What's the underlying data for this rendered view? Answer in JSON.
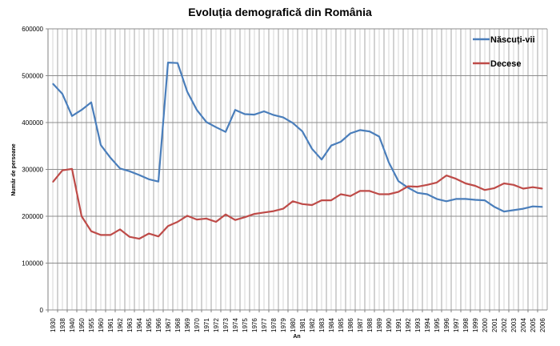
{
  "chart_data": {
    "type": "line",
    "title": "Evoluția demografică din România",
    "xlabel": "An",
    "ylabel": "Număr de persoane",
    "ylim": [
      0,
      600000
    ],
    "yticks": [
      "0",
      "100000",
      "200000",
      "300000",
      "400000",
      "500000",
      "600000"
    ],
    "grid": true,
    "legend_position": "top-right",
    "categories": [
      "1930",
      "1938",
      "1940",
      "1950",
      "1955",
      "1960",
      "1961",
      "1962",
      "1963",
      "1964",
      "1965",
      "1966",
      "1967",
      "1968",
      "1969",
      "1970",
      "1971",
      "1972",
      "1973",
      "1974",
      "1975",
      "1976",
      "1977",
      "1978",
      "1979",
      "1980",
      "1981",
      "1982",
      "1983",
      "1984",
      "1985",
      "1986",
      "1987",
      "1988",
      "1989",
      "1990",
      "1991",
      "1992",
      "1993",
      "1994",
      "1995",
      "1996",
      "1997",
      "1998",
      "1999",
      "2000",
      "2001",
      "2002",
      "2003",
      "2004",
      "2005",
      "2006"
    ],
    "series": [
      {
        "name": "Născuți-vii",
        "color": "#4a7ebb",
        "values": [
          483000,
          461000,
          414000,
          427000,
          443000,
          352000,
          325000,
          302000,
          296000,
          288000,
          279000,
          274000,
          528000,
          527000,
          466000,
          427000,
          401000,
          390000,
          380000,
          427000,
          418000,
          417000,
          424000,
          416000,
          411000,
          399000,
          381000,
          344000,
          321000,
          351000,
          359000,
          377000,
          384000,
          381000,
          370000,
          315000,
          275000,
          261000,
          250000,
          247000,
          237000,
          232000,
          237000,
          237000,
          235000,
          234000,
          220000,
          210000,
          213000,
          216000,
          221000,
          220000
        ]
      },
      {
        "name": "Decese",
        "color": "#be4b48",
        "values": [
          273000,
          298000,
          301000,
          200000,
          168000,
          160000,
          160000,
          172000,
          156000,
          152000,
          163000,
          157000,
          179000,
          188000,
          201000,
          193000,
          195000,
          188000,
          204000,
          192000,
          198000,
          205000,
          208000,
          211000,
          216000,
          232000,
          226000,
          224000,
          234000,
          234000,
          247000,
          243000,
          254000,
          254000,
          247000,
          247000,
          252000,
          264000,
          263000,
          267000,
          272000,
          287000,
          280000,
          270000,
          265000,
          256000,
          260000,
          270000,
          267000,
          259000,
          262000,
          259000
        ]
      }
    ]
  }
}
